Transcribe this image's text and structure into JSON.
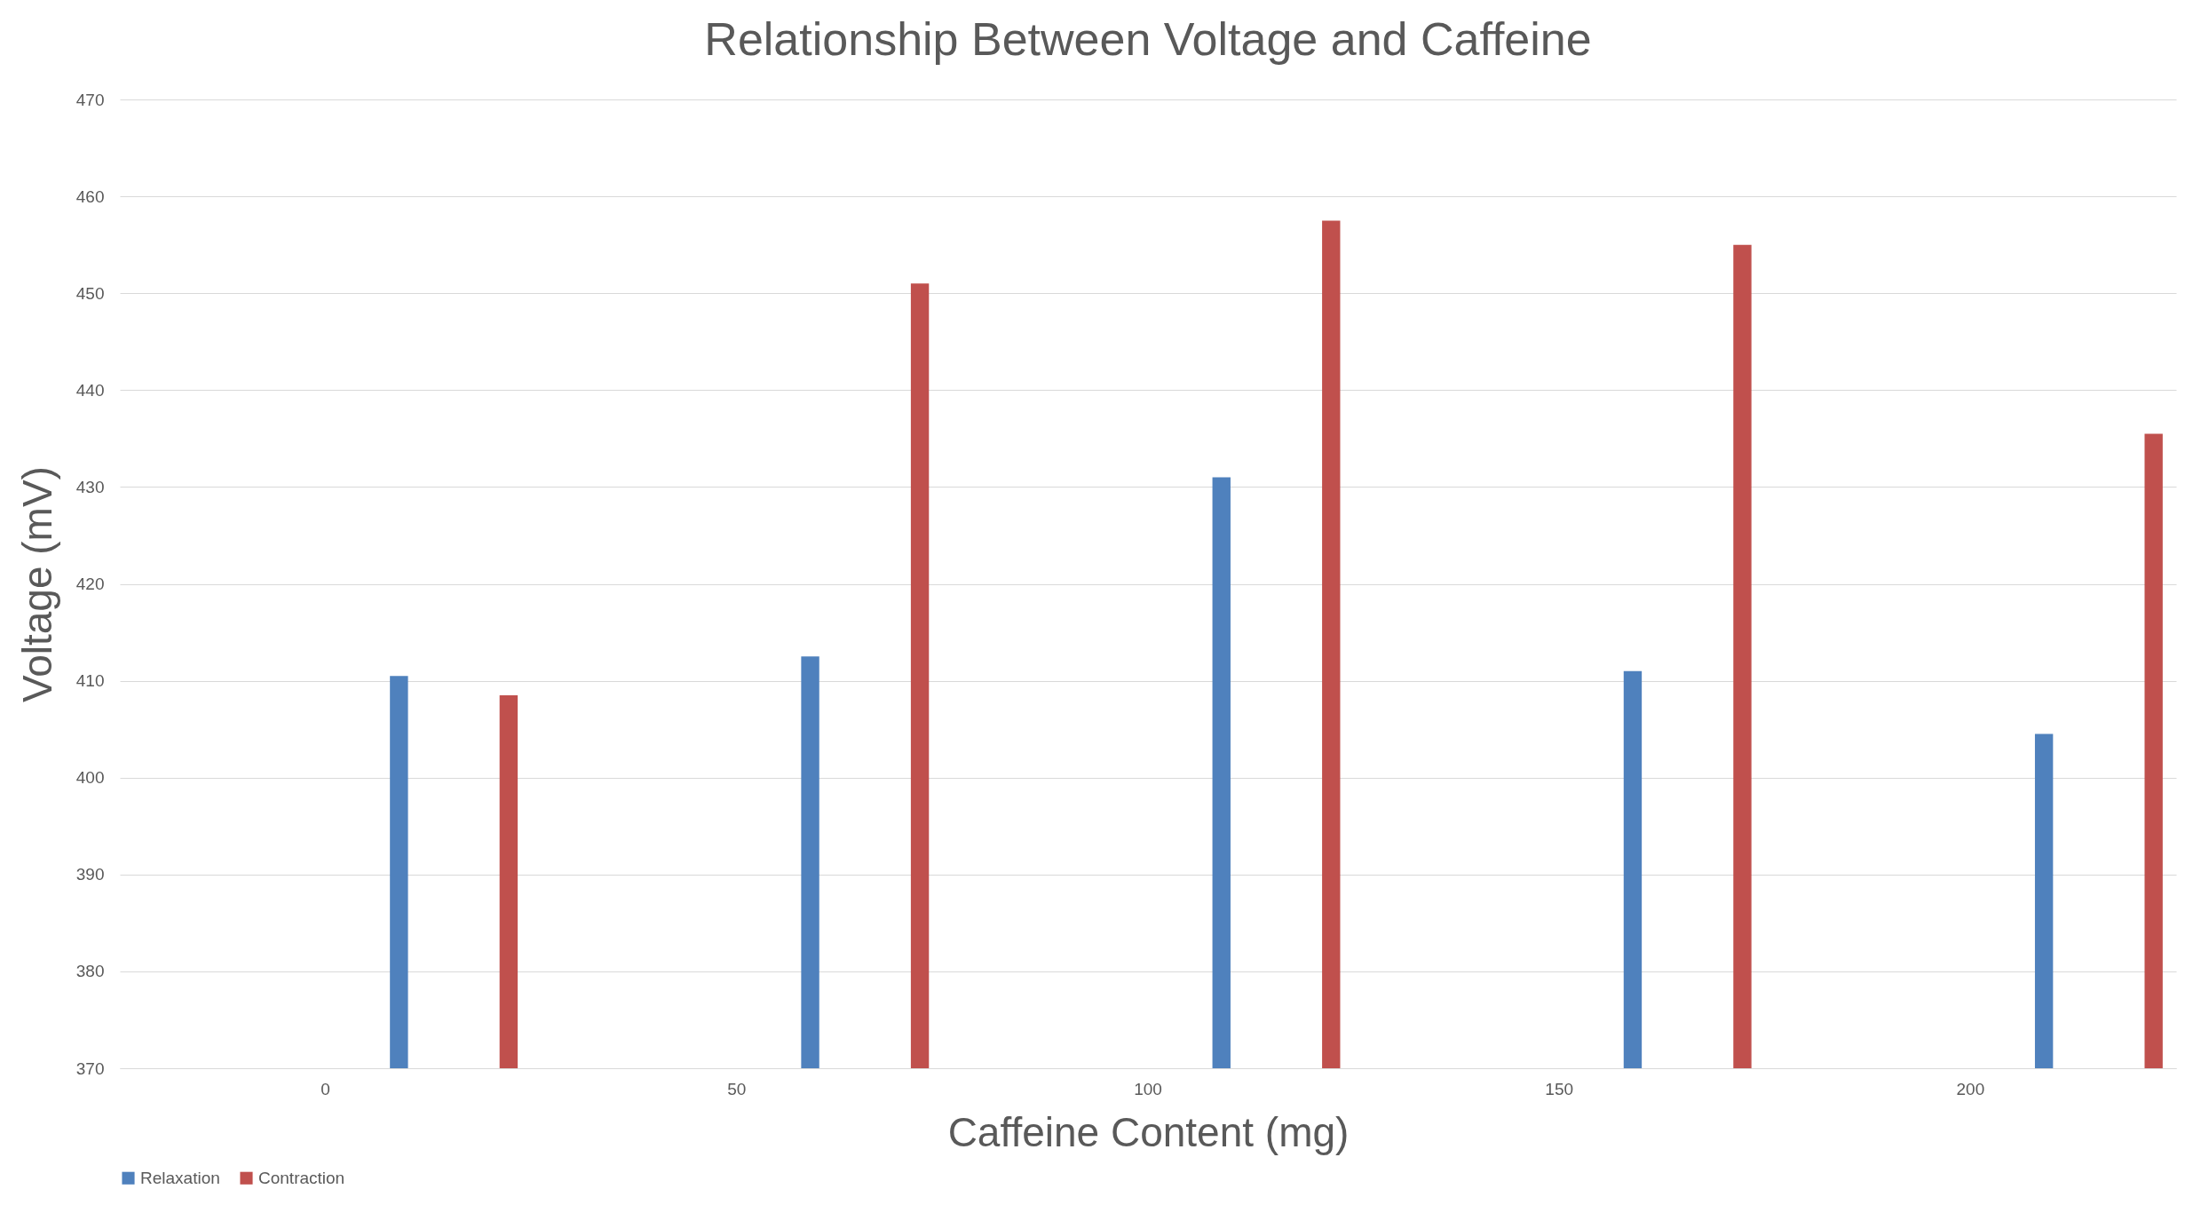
{
  "chart_data": {
    "type": "bar",
    "title": "Relationship Between Voltage and Caffeine",
    "xlabel": "Caffeine Content (mg)",
    "ylabel": "Voltage (mV)",
    "categories": [
      "0",
      "50",
      "100",
      "150",
      "200"
    ],
    "series": [
      {
        "name": "Relaxation",
        "color": "#4f81bd",
        "values": [
          410.5,
          412.5,
          431,
          411,
          404.5
        ]
      },
      {
        "name": "Contraction",
        "color": "#c0504d",
        "values": [
          408.5,
          451,
          457.5,
          455,
          435.5
        ]
      }
    ],
    "ylim": [
      370,
      470
    ],
    "yticks": [
      370,
      380,
      390,
      400,
      410,
      420,
      430,
      440,
      450,
      460,
      470
    ],
    "grid": "y",
    "legend": "bottom"
  }
}
